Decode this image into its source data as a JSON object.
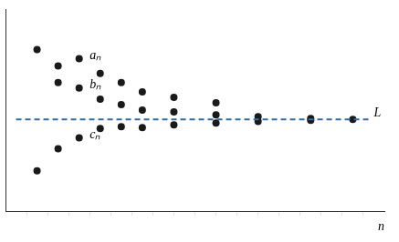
{
  "chart_data": {
    "type": "scatter",
    "xlabel": "n",
    "xlim": [
      0,
      18
    ],
    "ylim": [
      0,
      11
    ],
    "xticks": [
      1,
      2,
      3,
      4,
      5,
      6,
      7,
      8,
      9,
      10,
      11,
      12,
      13,
      14,
      15,
      16,
      17
    ],
    "yticks": [],
    "grid": false,
    "tick_labels": false,
    "series": [
      {
        "type": "line",
        "line_style": "dashed",
        "color": "#2E6DA4",
        "x": [
          0.5,
          17.3
        ],
        "values": [
          5.0,
          5.0
        ]
      },
      {
        "type": "scatter",
        "marker": "circle",
        "color": "#1a1a1a",
        "x": [
          1.5,
          2.5,
          3.5,
          4.5,
          5.5,
          6.5,
          8.0,
          10.0
        ],
        "values": [
          8.8,
          7.9,
          8.3,
          7.5,
          7.0,
          6.5,
          6.2,
          5.9
        ]
      },
      {
        "type": "scatter",
        "marker": "circle",
        "color": "#1a1a1a",
        "x": [
          2.5,
          3.5,
          4.5,
          5.5,
          6.5,
          8.0,
          10.0,
          12.0,
          14.5,
          16.5
        ],
        "values": [
          7.0,
          6.7,
          6.1,
          5.8,
          5.5,
          5.4,
          5.25,
          5.15,
          5.05,
          5.0
        ]
      },
      {
        "type": "scatter",
        "marker": "circle",
        "color": "#1a1a1a",
        "x": [
          1.5,
          2.5,
          3.5,
          4.5,
          5.5,
          6.5,
          8.0,
          10.0,
          12.0,
          14.5
        ],
        "values": [
          2.2,
          3.4,
          4.0,
          4.5,
          4.6,
          4.55,
          4.7,
          4.8,
          4.88,
          4.95
        ]
      }
    ],
    "annotations": [
      {
        "text": "L",
        "x": 17.5,
        "y": 5.0
      },
      {
        "text": "aₙ",
        "x": 4.0,
        "y": 8.1
      },
      {
        "text": "bₙ",
        "x": 4.0,
        "y": 6.55
      },
      {
        "text": "cₙ",
        "x": 4.0,
        "y": 3.8
      }
    ]
  }
}
